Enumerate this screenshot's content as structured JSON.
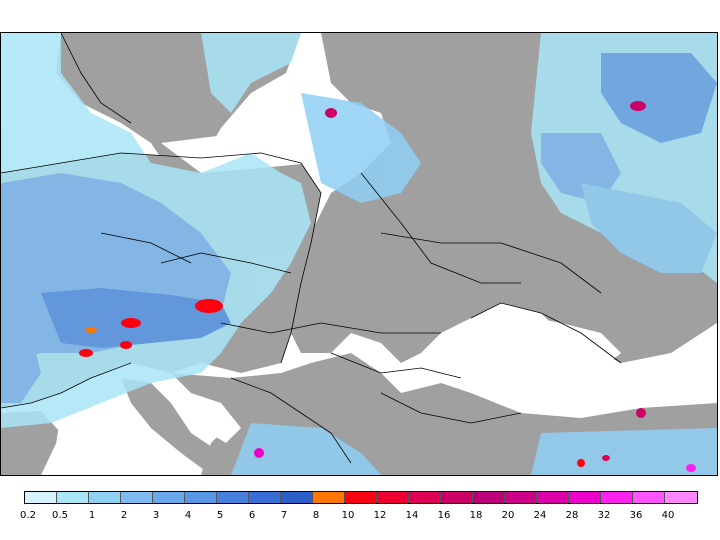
{
  "legend": {
    "colors": [
      "#d6f4ff",
      "#a9e6f7",
      "#8fd0f5",
      "#7fbbf0",
      "#69a8eb",
      "#5896e6",
      "#477fdf",
      "#386ed6",
      "#2b5ec9",
      "#ff7700",
      "#ff0010",
      "#ee0033",
      "#dd0055",
      "#cc0066",
      "#bb0077",
      "#cc0088",
      "#dd00aa",
      "#ee00cc",
      "#ff22ee",
      "#ff55ff",
      "#ff88ff"
    ],
    "labels": [
      "0.2",
      "0.5",
      "1",
      "2",
      "3",
      "4",
      "5",
      "6",
      "7",
      "8",
      "10",
      "12",
      "14",
      "16",
      "18",
      "20",
      "24",
      "28",
      "32",
      "36",
      "40"
    ]
  },
  "map_colors": {
    "land": "#a0a0a0",
    "sea": "#ffffff",
    "border": "#000000"
  }
}
